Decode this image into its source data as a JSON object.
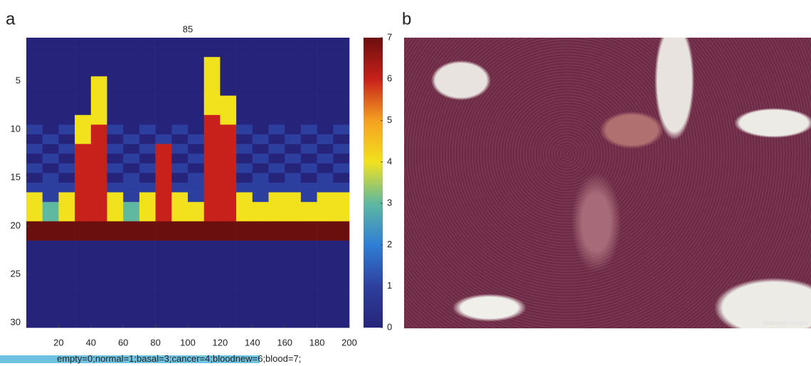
{
  "panel_a": {
    "label": "a",
    "title": "85",
    "xlim": [
      0,
      200
    ],
    "ylim": [
      0.5,
      30.5
    ],
    "xticks": [
      20,
      40,
      60,
      80,
      100,
      120,
      140,
      160,
      180,
      200
    ],
    "yticks": [
      5,
      10,
      15,
      20,
      25,
      30
    ],
    "colorbar": {
      "lim": [
        0,
        7
      ],
      "ticks": [
        0,
        1,
        2,
        3,
        4,
        5,
        6,
        7
      ],
      "colors": [
        "#26247a",
        "#2d3f9e",
        "#2f7fd6",
        "#5fb8a0",
        "#f2e21e",
        "#f5a020",
        "#c8201a",
        "#6b0f0e"
      ]
    },
    "matrix": [
      [
        0,
        0,
        0,
        0,
        0,
        0,
        0,
        0,
        0,
        0,
        0,
        0,
        0,
        0,
        0,
        0,
        0,
        0,
        0,
        0
      ],
      [
        0,
        0,
        0,
        0,
        0,
        0,
        0,
        0,
        0,
        0,
        0,
        0,
        0,
        0,
        0,
        0,
        0,
        0,
        0,
        0
      ],
      [
        0,
        0,
        0,
        0,
        0,
        0,
        0,
        0,
        0,
        0,
        0,
        4,
        0,
        0,
        0,
        0,
        0,
        0,
        0,
        0
      ],
      [
        0,
        0,
        0,
        0,
        0,
        0,
        0,
        0,
        0,
        0,
        0,
        4,
        0,
        0,
        0,
        0,
        0,
        0,
        0,
        0
      ],
      [
        0,
        0,
        0,
        0,
        4,
        0,
        0,
        0,
        0,
        0,
        0,
        4,
        0,
        0,
        0,
        0,
        0,
        0,
        0,
        0
      ],
      [
        0,
        0,
        0,
        0,
        4,
        0,
        0,
        0,
        0,
        0,
        0,
        4,
        0,
        0,
        0,
        0,
        0,
        0,
        0,
        0
      ],
      [
        0,
        0,
        0,
        0,
        4,
        0,
        0,
        0,
        0,
        0,
        0,
        4,
        4,
        0,
        0,
        0,
        0,
        0,
        0,
        0
      ],
      [
        0,
        0,
        0,
        0,
        4,
        0,
        0,
        0,
        0,
        0,
        0,
        4,
        4,
        0,
        0,
        0,
        0,
        0,
        0,
        0
      ],
      [
        0,
        0,
        0,
        4,
        4,
        0,
        0,
        0,
        0,
        0,
        0,
        6,
        4,
        0,
        0,
        0,
        0,
        0,
        0,
        0
      ],
      [
        1,
        0,
        1,
        4,
        6,
        1,
        0,
        1,
        0,
        1,
        0,
        6,
        6,
        1,
        0,
        1,
        0,
        1,
        0,
        1
      ],
      [
        0,
        1,
        0,
        4,
        6,
        0,
        1,
        0,
        1,
        0,
        1,
        6,
        6,
        0,
        1,
        0,
        1,
        0,
        1,
        0
      ],
      [
        1,
        0,
        1,
        6,
        6,
        1,
        0,
        1,
        6,
        1,
        0,
        6,
        6,
        1,
        0,
        1,
        0,
        1,
        0,
        1
      ],
      [
        0,
        1,
        0,
        6,
        6,
        0,
        1,
        0,
        6,
        0,
        1,
        6,
        6,
        0,
        1,
        0,
        1,
        0,
        1,
        0
      ],
      [
        1,
        0,
        1,
        6,
        6,
        1,
        0,
        1,
        6,
        1,
        0,
        6,
        6,
        1,
        0,
        1,
        0,
        1,
        0,
        1
      ],
      [
        0,
        1,
        0,
        6,
        6,
        0,
        1,
        0,
        6,
        0,
        1,
        6,
        6,
        0,
        1,
        0,
        1,
        0,
        1,
        0
      ],
      [
        1,
        1,
        1,
        6,
        6,
        1,
        1,
        1,
        6,
        1,
        1,
        6,
        6,
        1,
        1,
        1,
        1,
        1,
        1,
        1
      ],
      [
        4,
        1,
        4,
        6,
        6,
        4,
        1,
        4,
        6,
        4,
        1,
        6,
        6,
        4,
        1,
        4,
        4,
        1,
        4,
        4
      ],
      [
        4,
        3,
        4,
        6,
        6,
        4,
        3,
        4,
        6,
        4,
        4,
        6,
        6,
        4,
        4,
        4,
        4,
        4,
        4,
        4
      ],
      [
        4,
        3,
        4,
        6,
        6,
        4,
        3,
        4,
        6,
        4,
        4,
        6,
        6,
        4,
        4,
        4,
        4,
        4,
        4,
        4
      ],
      [
        7,
        7,
        7,
        7,
        7,
        7,
        7,
        7,
        7,
        7,
        7,
        7,
        7,
        7,
        7,
        7,
        7,
        7,
        7,
        7
      ],
      [
        7,
        7,
        7,
        7,
        7,
        7,
        7,
        7,
        7,
        7,
        7,
        7,
        7,
        7,
        7,
        7,
        7,
        7,
        7,
        7
      ],
      [
        0,
        0,
        0,
        0,
        0,
        0,
        0,
        0,
        0,
        0,
        0,
        0,
        0,
        0,
        0,
        0,
        0,
        0,
        0,
        0
      ],
      [
        0,
        0,
        0,
        0,
        0,
        0,
        0,
        0,
        0,
        0,
        0,
        0,
        0,
        0,
        0,
        0,
        0,
        0,
        0,
        0
      ],
      [
        0,
        0,
        0,
        0,
        0,
        0,
        0,
        0,
        0,
        0,
        0,
        0,
        0,
        0,
        0,
        0,
        0,
        0,
        0,
        0
      ],
      [
        0,
        0,
        0,
        0,
        0,
        0,
        0,
        0,
        0,
        0,
        0,
        0,
        0,
        0,
        0,
        0,
        0,
        0,
        0,
        0
      ],
      [
        0,
        0,
        0,
        0,
        0,
        0,
        0,
        0,
        0,
        0,
        0,
        0,
        0,
        0,
        0,
        0,
        0,
        0,
        0,
        0
      ],
      [
        0,
        0,
        0,
        0,
        0,
        0,
        0,
        0,
        0,
        0,
        0,
        0,
        0,
        0,
        0,
        0,
        0,
        0,
        0,
        0
      ],
      [
        0,
        0,
        0,
        0,
        0,
        0,
        0,
        0,
        0,
        0,
        0,
        0,
        0,
        0,
        0,
        0,
        0,
        0,
        0,
        0
      ],
      [
        0,
        0,
        0,
        0,
        0,
        0,
        0,
        0,
        0,
        0,
        0,
        0,
        0,
        0,
        0,
        0,
        0,
        0,
        0,
        0
      ],
      [
        0,
        0,
        0,
        0,
        0,
        0,
        0,
        0,
        0,
        0,
        0,
        0,
        0,
        0,
        0,
        0,
        0,
        0,
        0,
        0
      ]
    ]
  },
  "panel_b": {
    "label": "b",
    "watermark": "Wellcome Images"
  },
  "caption": "empty=0;normal=1;basal=3;cancer=4;bloodnew=6;blood=7;"
}
